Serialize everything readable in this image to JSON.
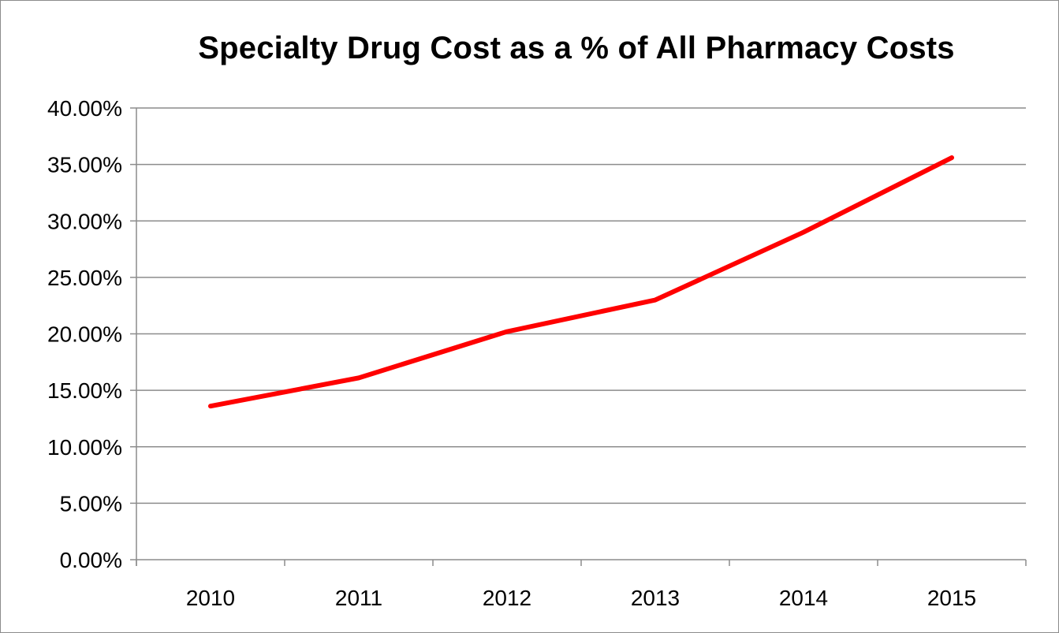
{
  "chart_data": {
    "type": "line",
    "title": "Specialty Drug Cost as a % of All Pharmacy Costs",
    "xlabel": "",
    "ylabel": "",
    "categories": [
      "2010",
      "2011",
      "2012",
      "2013",
      "2014",
      "2015"
    ],
    "series": [
      {
        "values": [
          0.136,
          0.161,
          0.202,
          0.23,
          0.29,
          0.356
        ],
        "color": "#ff0000"
      }
    ],
    "ylim": [
      0,
      0.4
    ],
    "yticks": [
      0,
      0.05,
      0.1,
      0.15,
      0.2,
      0.25,
      0.3,
      0.35,
      0.4
    ],
    "ytick_labels": [
      "0.00%",
      "5.00%",
      "10.00%",
      "15.00%",
      "20.00%",
      "25.00%",
      "30.00%",
      "35.00%",
      "40.00%"
    ],
    "grid": true,
    "legend": "none",
    "gridline_color": "#8c8c8c"
  }
}
